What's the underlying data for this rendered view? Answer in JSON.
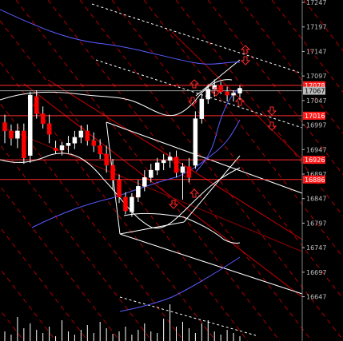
{
  "chart_data": {
    "type": "candlestick",
    "y_axis": {
      "ylim": [
        16617,
        17247
      ],
      "ticks": [
        17247,
        17197,
        17147,
        17097,
        17047,
        16997,
        16947,
        16897,
        16847,
        16797,
        16747,
        16697,
        16647
      ]
    },
    "price_tags": [
      {
        "label": "17078",
        "value": 17078
      },
      {
        "label": "17067",
        "value": 17067
      },
      {
        "label": "17016",
        "value": 17016
      },
      {
        "label": "16926",
        "value": 16926
      },
      {
        "label": "16886",
        "value": 16886
      }
    ],
    "candles": [
      {
        "o": 17002,
        "h": 17018,
        "l": 16960,
        "c": 16985
      },
      {
        "o": 16985,
        "h": 16998,
        "l": 16955,
        "c": 16970
      },
      {
        "o": 16970,
        "h": 17000,
        "l": 16950,
        "c": 16985
      },
      {
        "o": 16985,
        "h": 17000,
        "l": 16918,
        "c": 16930
      },
      {
        "o": 16935,
        "h": 17065,
        "l": 16920,
        "c": 17058
      },
      {
        "o": 17055,
        "h": 17068,
        "l": 17010,
        "c": 17020
      },
      {
        "o": 17020,
        "h": 17035,
        "l": 16990,
        "c": 17000
      },
      {
        "o": 17000,
        "h": 17018,
        "l": 16960,
        "c": 16978
      },
      {
        "o": 16950,
        "h": 16965,
        "l": 16938,
        "c": 16945
      },
      {
        "o": 16946,
        "h": 16962,
        "l": 16935,
        "c": 16955
      },
      {
        "o": 16955,
        "h": 16975,
        "l": 16940,
        "c": 16960
      },
      {
        "o": 16960,
        "h": 16985,
        "l": 16948,
        "c": 16972
      },
      {
        "o": 16972,
        "h": 16996,
        "l": 16960,
        "c": 16985
      },
      {
        "o": 16985,
        "h": 16998,
        "l": 16955,
        "c": 16965
      },
      {
        "o": 16965,
        "h": 16982,
        "l": 16942,
        "c": 16955
      },
      {
        "o": 16955,
        "h": 16968,
        "l": 16928,
        "c": 16938
      },
      {
        "o": 16938,
        "h": 16955,
        "l": 16900,
        "c": 16915
      },
      {
        "o": 16915,
        "h": 16928,
        "l": 16865,
        "c": 16885
      },
      {
        "o": 16885,
        "h": 16896,
        "l": 16838,
        "c": 16850
      },
      {
        "o": 16850,
        "h": 16860,
        "l": 16815,
        "c": 16822
      },
      {
        "o": 16820,
        "h": 16858,
        "l": 16810,
        "c": 16850
      },
      {
        "o": 16850,
        "h": 16885,
        "l": 16840,
        "c": 16872
      },
      {
        "o": 16872,
        "h": 16905,
        "l": 16862,
        "c": 16890
      },
      {
        "o": 16890,
        "h": 16918,
        "l": 16880,
        "c": 16905
      },
      {
        "o": 16905,
        "h": 16930,
        "l": 16895,
        "c": 16920
      },
      {
        "o": 16920,
        "h": 16938,
        "l": 16905,
        "c": 16925
      },
      {
        "o": 16925,
        "h": 16942,
        "l": 16910,
        "c": 16932
      },
      {
        "o": 16932,
        "h": 16945,
        "l": 16890,
        "c": 16900
      },
      {
        "o": 16900,
        "h": 16920,
        "l": 16845,
        "c": 16912
      },
      {
        "o": 16912,
        "h": 16930,
        "l": 16880,
        "c": 16890
      },
      {
        "o": 16915,
        "h": 17025,
        "l": 16908,
        "c": 17010
      },
      {
        "o": 17010,
        "h": 17058,
        "l": 17000,
        "c": 17050
      },
      {
        "o": 17050,
        "h": 17080,
        "l": 17040,
        "c": 17070
      },
      {
        "o": 17070,
        "h": 17090,
        "l": 17055,
        "c": 17078
      },
      {
        "o": 17078,
        "h": 17085,
        "l": 17060,
        "c": 17065
      },
      {
        "o": 17065,
        "h": 17075,
        "l": 17045,
        "c": 17058
      },
      {
        "o": 17058,
        "h": 17068,
        "l": 17045,
        "c": 17062
      },
      {
        "o": 17062,
        "h": 17078,
        "l": 17048,
        "c": 17072
      }
    ],
    "volumes": [
      12,
      8,
      30,
      16,
      22,
      14,
      10,
      18,
      6,
      26,
      12,
      8,
      14,
      20,
      10,
      24,
      16,
      9,
      12,
      18,
      8,
      14,
      22,
      12,
      10,
      28,
      46,
      18,
      24,
      16,
      10,
      22,
      26,
      12,
      8,
      14,
      10,
      6
    ]
  }
}
